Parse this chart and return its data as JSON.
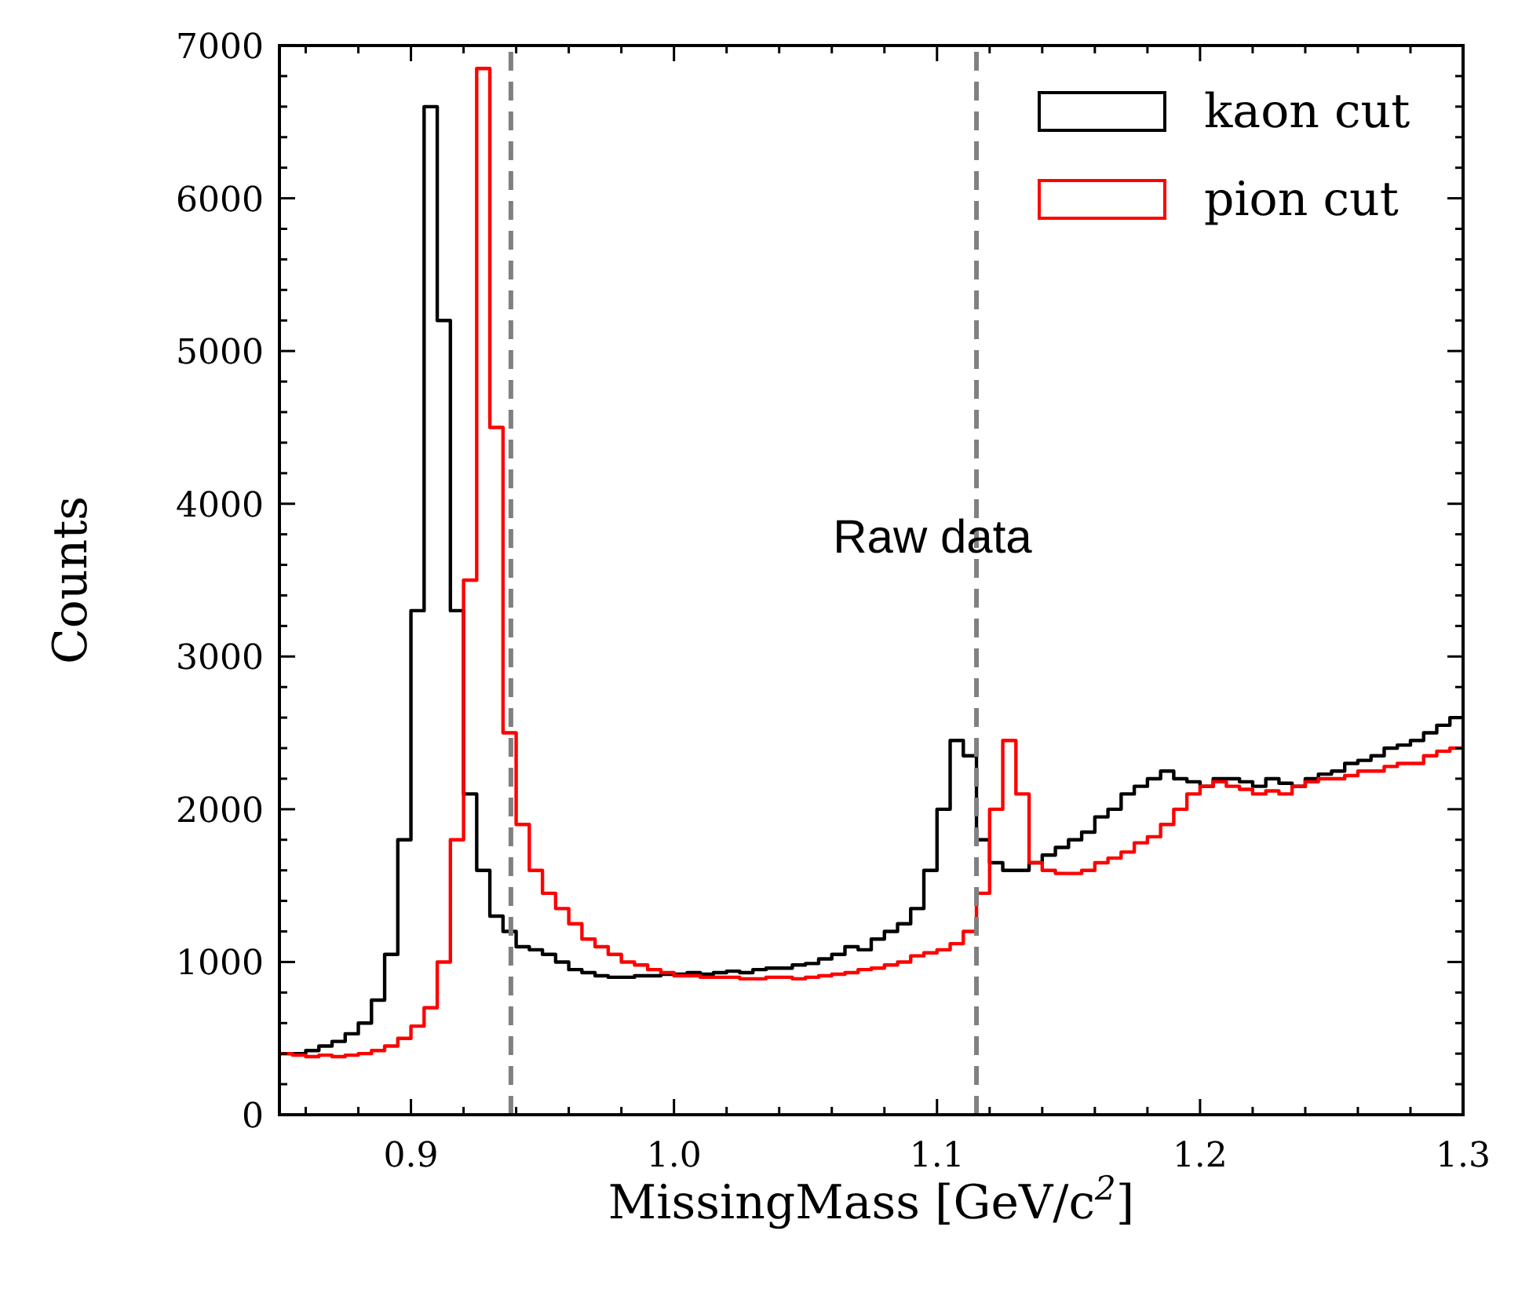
{
  "chart_data": {
    "type": "histogram",
    "xlabel": "MissingMass [GeV/c$^{2}$]",
    "ylabel": "Counts",
    "bins": [
      0.85,
      0.855,
      0.86,
      0.865,
      0.87,
      0.875,
      0.88,
      0.885,
      0.89,
      0.895,
      0.9,
      0.905,
      0.91,
      0.915,
      0.92,
      0.925,
      0.93,
      0.935,
      0.94,
      0.945,
      0.95,
      0.955,
      0.96,
      0.965,
      0.97,
      0.975,
      0.98,
      0.985,
      0.99,
      0.995,
      1.0,
      1.005,
      1.01,
      1.015,
      1.02,
      1.025,
      1.03,
      1.035,
      1.04,
      1.045,
      1.05,
      1.055,
      1.06,
      1.065,
      1.07,
      1.075,
      1.08,
      1.085,
      1.09,
      1.095,
      1.1,
      1.105,
      1.11,
      1.115,
      1.12,
      1.125,
      1.13,
      1.135,
      1.14,
      1.145,
      1.15,
      1.155,
      1.16,
      1.165,
      1.17,
      1.175,
      1.18,
      1.185,
      1.19,
      1.195,
      1.2,
      1.205,
      1.21,
      1.215,
      1.22,
      1.225,
      1.23,
      1.235,
      1.24,
      1.245,
      1.25,
      1.255,
      1.26,
      1.265,
      1.27,
      1.275,
      1.28,
      1.285,
      1.29,
      1.295,
      1.3
    ],
    "series": [
      {
        "name": "kaon cut",
        "color": "#000000",
        "values": [
          400,
          400,
          420,
          450,
          480,
          530,
          600,
          750,
          1050,
          1800,
          3300,
          6600,
          5200,
          3300,
          2100,
          1600,
          1300,
          1200,
          1100,
          1080,
          1050,
          1000,
          950,
          930,
          910,
          900,
          900,
          910,
          910,
          920,
          920,
          930,
          920,
          930,
          940,
          930,
          950,
          960,
          960,
          980,
          990,
          1020,
          1050,
          1100,
          1080,
          1150,
          1200,
          1250,
          1350,
          1600,
          2000,
          2450,
          2350,
          1800,
          1650,
          1600,
          1600,
          1650,
          1700,
          1750,
          1800,
          1850,
          1950,
          2000,
          2100,
          2150,
          2200,
          2250,
          2200,
          2180,
          2150,
          2200,
          2200,
          2180,
          2150,
          2200,
          2170,
          2150,
          2200,
          2230,
          2250,
          2300,
          2320,
          2350,
          2400,
          2420,
          2450,
          2500,
          2550,
          2600
        ]
      },
      {
        "name": "pion cut",
        "color": "#ff0000",
        "values": [
          400,
          390,
          380,
          390,
          380,
          390,
          400,
          420,
          450,
          500,
          580,
          700,
          1000,
          1800,
          3500,
          6850,
          4500,
          2500,
          1900,
          1600,
          1450,
          1350,
          1250,
          1150,
          1100,
          1050,
          1000,
          980,
          950,
          930,
          910,
          910,
          900,
          900,
          900,
          890,
          890,
          900,
          900,
          890,
          900,
          910,
          920,
          930,
          950,
          960,
          980,
          1000,
          1040,
          1060,
          1080,
          1120,
          1200,
          1450,
          2000,
          2450,
          2100,
          1650,
          1600,
          1580,
          1580,
          1600,
          1650,
          1680,
          1720,
          1780,
          1820,
          1900,
          2000,
          2100,
          2150,
          2180,
          2150,
          2130,
          2100,
          2120,
          2100,
          2150,
          2180,
          2200,
          2200,
          2220,
          2250,
          2250,
          2280,
          2300,
          2300,
          2350,
          2380,
          2400
        ]
      }
    ],
    "xlim": [
      0.85,
      1.3
    ],
    "xticks": [
      {
        "value": 0.86,
        "label": null
      },
      {
        "value": 0.88,
        "label": null
      },
      {
        "value": 0.9,
        "label": "0.9"
      },
      {
        "value": 0.92,
        "label": null
      },
      {
        "value": 0.94,
        "label": null
      },
      {
        "value": 0.96,
        "label": null
      },
      {
        "value": 0.98,
        "label": null
      },
      {
        "value": 1.0,
        "label": "1.0"
      },
      {
        "value": 1.02,
        "label": null
      },
      {
        "value": 1.04,
        "label": null
      },
      {
        "value": 1.06,
        "label": null
      },
      {
        "value": 1.08,
        "label": null
      },
      {
        "value": 1.1,
        "label": "1.1"
      },
      {
        "value": 1.12,
        "label": null
      },
      {
        "value": 1.14,
        "label": null
      },
      {
        "value": 1.16,
        "label": null
      },
      {
        "value": 1.18,
        "label": null
      },
      {
        "value": 1.2,
        "label": "1.2"
      },
      {
        "value": 1.22,
        "label": null
      },
      {
        "value": 1.24,
        "label": null
      },
      {
        "value": 1.26,
        "label": null
      },
      {
        "value": 1.28,
        "label": null
      },
      {
        "value": 1.3,
        "label": "1.3"
      }
    ],
    "ylim": [
      0,
      7000
    ],
    "yticks": [
      0,
      {
        "value": 200,
        "label": null
      },
      {
        "value": 400,
        "label": null
      },
      {
        "value": 600,
        "label": null
      },
      {
        "value": 800,
        "label": null
      },
      1000,
      {
        "value": 1200,
        "label": null
      },
      {
        "value": 1400,
        "label": null
      },
      {
        "value": 1600,
        "label": null
      },
      {
        "value": 1800,
        "label": null
      },
      2000,
      {
        "value": 2200,
        "label": null
      },
      {
        "value": 2400,
        "label": null
      },
      {
        "value": 2600,
        "label": null
      },
      {
        "value": 2800,
        "label": null
      },
      3000,
      {
        "value": 3200,
        "label": null
      },
      {
        "value": 3400,
        "label": null
      },
      {
        "value": 3600,
        "label": null
      },
      {
        "value": 3800,
        "label": null
      },
      4000,
      {
        "value": 4200,
        "label": null
      },
      {
        "value": 4400,
        "label": null
      },
      {
        "value": 4600,
        "label": null
      },
      {
        "value": 4800,
        "label": null
      },
      5000,
      {
        "value": 5200,
        "label": null
      },
      {
        "value": 5400,
        "label": null
      },
      {
        "value": 5600,
        "label": null
      },
      {
        "value": 5800,
        "label": null
      },
      6000,
      {
        "value": 6200,
        "label": null
      },
      {
        "value": 6400,
        "label": null
      },
      {
        "value": 6600,
        "label": null
      },
      {
        "value": 6800,
        "label": null
      },
      7000
    ],
    "ref_lines": [
      {
        "axis": "x",
        "value": 0.938,
        "color": "#808080",
        "line_style": "dashed"
      },
      {
        "axis": "x",
        "value": 1.115,
        "color": "#808080",
        "line_style": "dashed"
      }
    ],
    "annotations": [
      "Raw data"
    ],
    "legend": "top right",
    "grid": false
  }
}
